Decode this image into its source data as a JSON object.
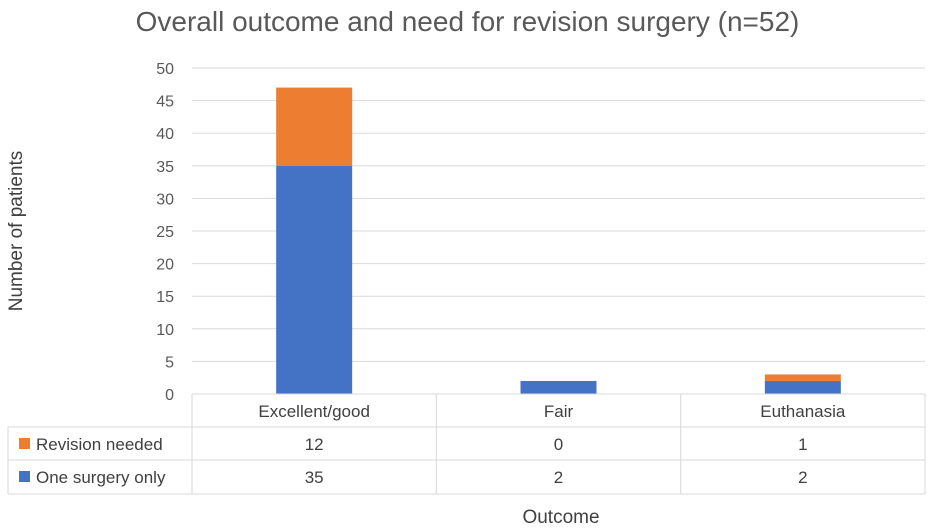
{
  "chart_data": {
    "type": "bar",
    "stacked": true,
    "title": "Overall outcome and need for revision surgery (n=52)",
    "xlabel": "Outcome",
    "ylabel": "Number of patients",
    "ylim": [
      0,
      50
    ],
    "yticks": [
      0,
      5,
      10,
      15,
      20,
      25,
      30,
      35,
      40,
      45,
      50
    ],
    "categories": [
      "Excellent/good",
      "Fair",
      "Euthanasia"
    ],
    "series": [
      {
        "name": "One surgery only",
        "values": [
          35,
          2,
          2
        ],
        "color": "#4472C4"
      },
      {
        "name": "Revision needed",
        "values": [
          12,
          0,
          1
        ],
        "color": "#ED7D31"
      }
    ],
    "data_table": true,
    "grid": true,
    "legend": "data-table"
  }
}
